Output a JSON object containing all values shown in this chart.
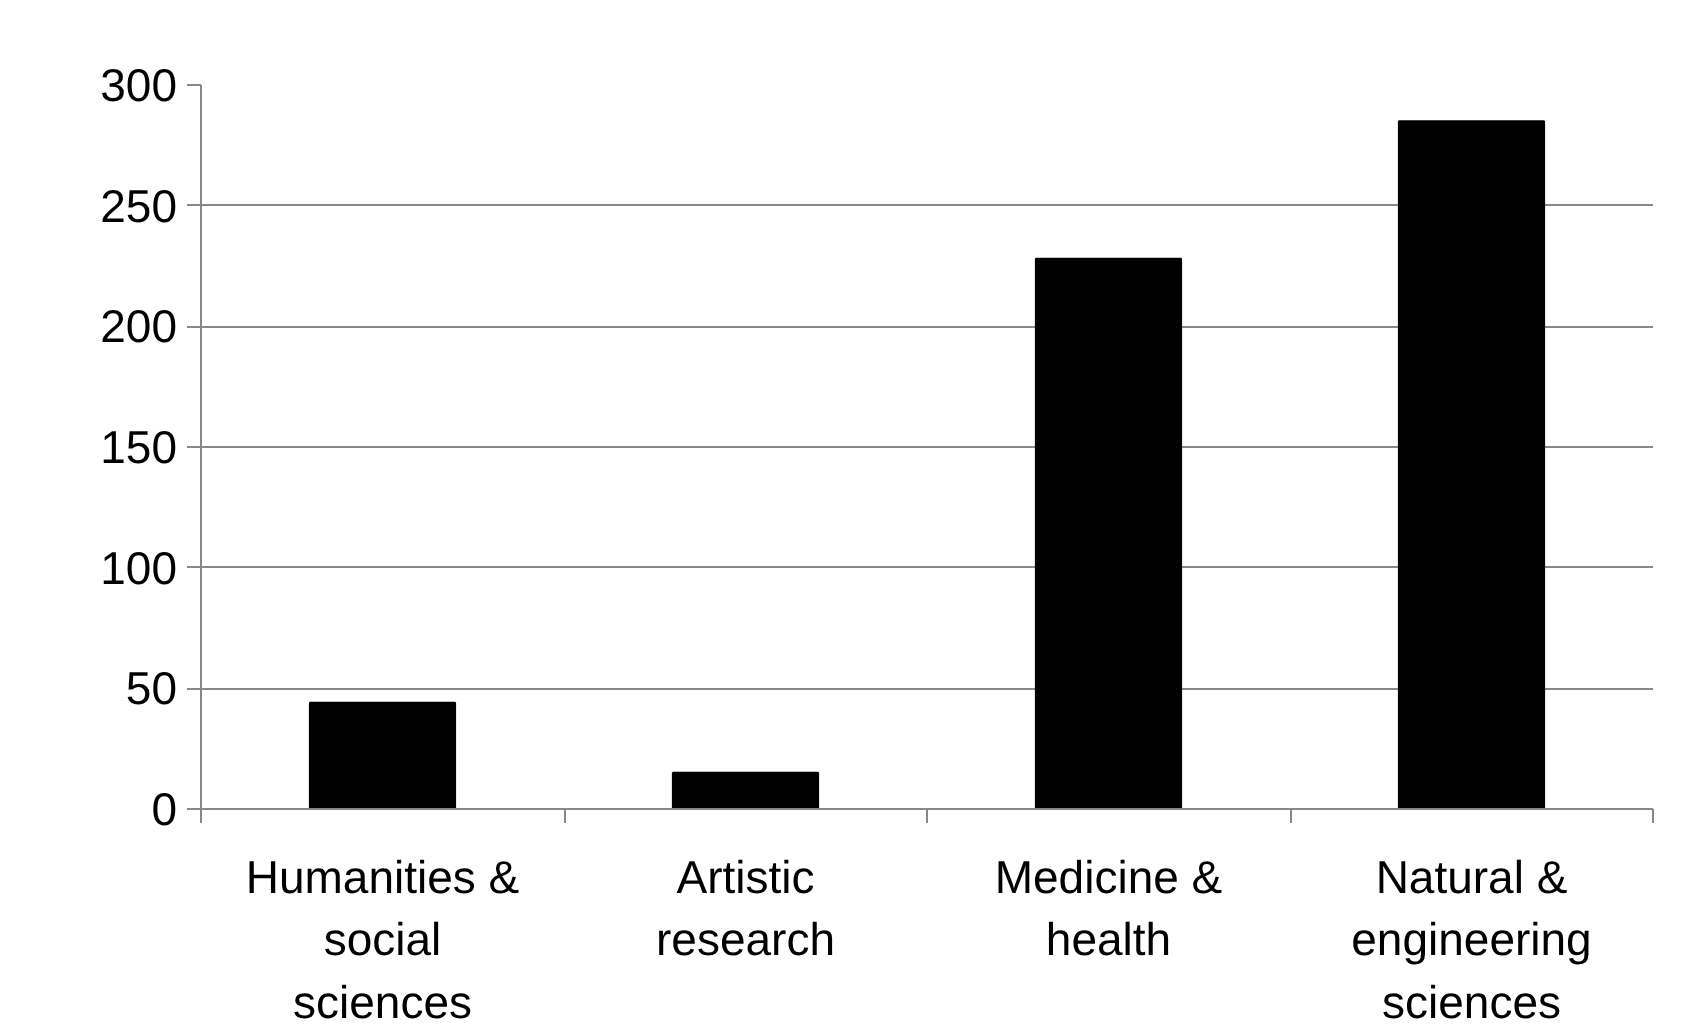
{
  "chart_data": {
    "type": "bar",
    "categories": [
      "Humanities & social sciences",
      "Artistic research",
      "Medicine & health",
      "Natural & engineering sciences"
    ],
    "values": [
      44,
      15,
      228,
      285
    ],
    "color": "#000000",
    "ylim": [
      0,
      300
    ],
    "yticks": [
      0,
      50,
      100,
      150,
      200,
      250,
      300
    ],
    "grid": "y"
  }
}
